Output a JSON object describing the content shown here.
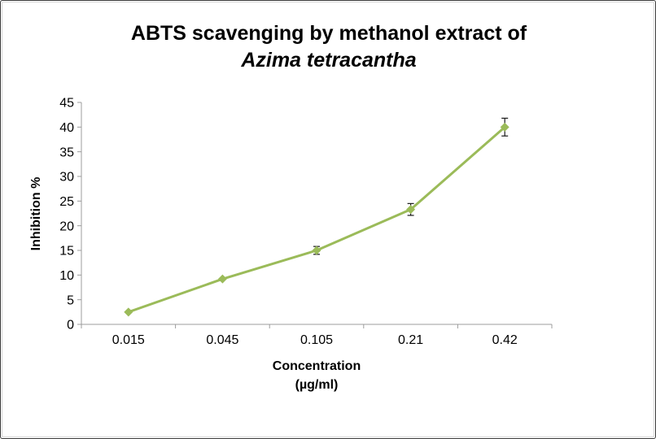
{
  "chart": {
    "title_line1": "ABTS scavenging by methanol extract of",
    "title_line2": "Azima tetracantha",
    "ylabel": "Inhibition %",
    "xlabel_line1": "Concentration",
    "xlabel_line2": "(µg/ml)"
  },
  "chart_data": {
    "type": "line",
    "title": "ABTS scavenging by methanol extract of Azima tetracantha",
    "xlabel": "Concentration (µg/ml)",
    "ylabel": "Inhibition %",
    "categories": [
      "0.015",
      "0.045",
      "0.105",
      "0.21",
      "0.42"
    ],
    "series": [
      {
        "name": "Inhibition %",
        "values": [
          2.5,
          9.2,
          15,
          23.3,
          40
        ],
        "error_bars": [
          0,
          0,
          0.8,
          1.2,
          1.8
        ]
      }
    ],
    "ylim": [
      0,
      45
    ],
    "ytick_step": 5,
    "grid": false,
    "legend": "none",
    "line_color": "#9BBB59",
    "marker": "diamond",
    "error_color": "#1a1a1a",
    "axis_color": "#9c9c9c"
  }
}
